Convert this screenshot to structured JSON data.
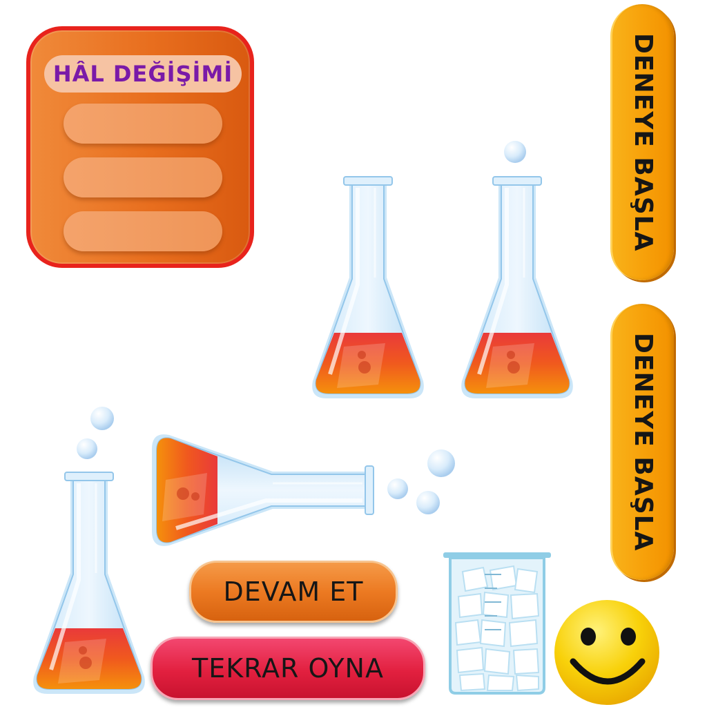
{
  "menu": {
    "title": "HÂL DEĞİŞİMİ",
    "slots": [
      "",
      "",
      ""
    ]
  },
  "buttons": {
    "start_top": "DENEYE BAŞLA",
    "start_bottom": "DENEYE BAŞLA",
    "continue": "DEVAM ET",
    "replay": "TEKRAR OYNA"
  },
  "colors": {
    "panel_border": "#e8231c",
    "panel_fill": "#e86e1e",
    "title_text": "#7a1aa8",
    "start_button": "#f7a10a",
    "continue_button": "#ec7a22",
    "replay_button": "#e2203f",
    "liquid_top": "#e83b3b",
    "liquid_bottom": "#f5850f",
    "smiley": "#f7c900"
  },
  "icons": [
    "erlenmeyer-flask-icon",
    "bubble-icon",
    "ice-beaker-icon",
    "smiley-face-icon"
  ]
}
